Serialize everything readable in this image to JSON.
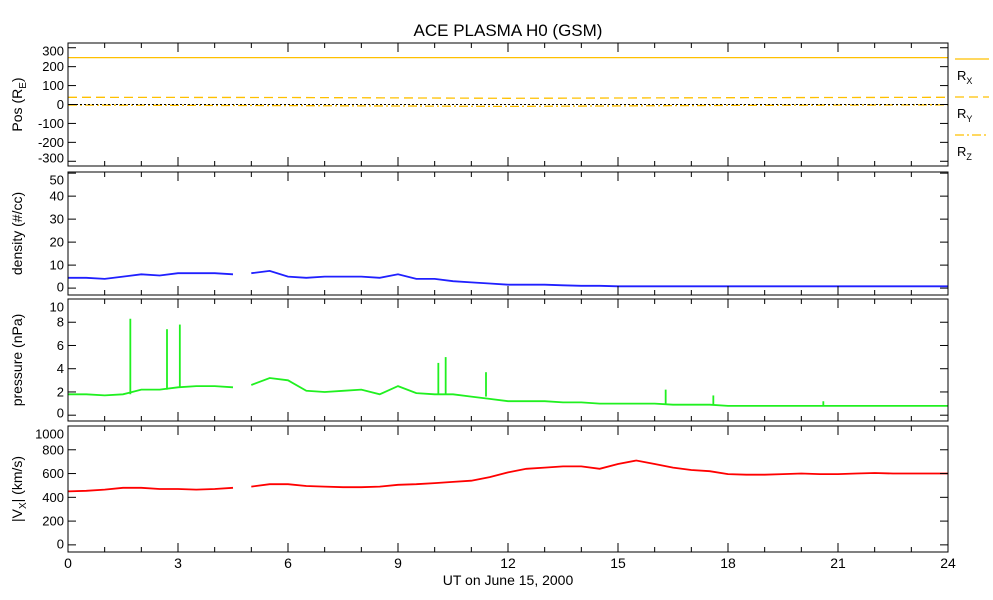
{
  "title": "ACE PLASMA H0 (GSM)",
  "chart_data": {
    "type": "line",
    "title": "ACE PLASMA H0 (GSM)",
    "xlabel": "UT on June 15, 2000",
    "xlim": [
      0,
      24
    ],
    "xticks": [
      0,
      3,
      6,
      9,
      12,
      15,
      18,
      21,
      24
    ],
    "panels": [
      {
        "id": "pos",
        "ylabel": "Pos (R",
        "ylabel_sub": "E",
        "ylabel_end": ")",
        "ylim": [
          -325,
          325
        ],
        "yticks": [
          300,
          200,
          100,
          0,
          -100,
          -200,
          -300
        ],
        "zero_line": true,
        "series": [
          {
            "name": "R",
            "sub": "X",
            "color": "#ffc000",
            "dash": "solid",
            "x": [
              0,
              24
            ],
            "y": [
              248,
              248
            ]
          },
          {
            "name": "R",
            "sub": "Y",
            "color": "#ffc000",
            "dash": "dashed",
            "x": [
              0,
              6,
              12,
              18,
              24
            ],
            "y": [
              38,
              37,
              33,
              36,
              38
            ]
          },
          {
            "name": "R",
            "sub": "Z",
            "color": "#ffc000",
            "dash": "dashdot",
            "x": [
              0,
              6,
              12,
              18,
              24
            ],
            "y": [
              -3,
              -6,
              -10,
              -5,
              -2
            ]
          }
        ]
      },
      {
        "id": "density",
        "ylabel": "density (#/cc)",
        "ylim": [
          -3,
          50.5
        ],
        "yticks": [
          50,
          40,
          30,
          20,
          10,
          0
        ],
        "series": [
          {
            "name": "density",
            "color": "#2020ff",
            "x": [
              0,
              0.5,
              1,
              1.5,
              2,
              2.5,
              3,
              3.5,
              4,
              4.5,
              4.6,
              4.7,
              5,
              5.5,
              6,
              6.5,
              7,
              7.5,
              8,
              8.5,
              9,
              9.5,
              10,
              10.5,
              11,
              11.5,
              12,
              12.5,
              13,
              13.5,
              14,
              14.5,
              15,
              15.5,
              16,
              16.5,
              17,
              17.5,
              18,
              18.5,
              19,
              19.5,
              20,
              20.5,
              21,
              21.5,
              22,
              22.5,
              23,
              23.5,
              24
            ],
            "y": [
              4.5,
              4.5,
              4,
              5,
              6,
              5.5,
              6.5,
              6.5,
              6.5,
              6,
              null,
              null,
              6.5,
              7.5,
              5,
              4.5,
              5,
              5,
              5,
              4.5,
              6,
              4,
              4,
              3,
              2.5,
              2,
              1.5,
              1.5,
              1.5,
              1.2,
              1,
              1,
              0.8,
              0.8,
              0.8,
              0.8,
              0.8,
              0.8,
              0.8,
              0.8,
              0.8,
              0.8,
              0.8,
              0.8,
              0.8,
              0.8,
              0.8,
              0.8,
              0.8,
              0.8,
              0.8
            ]
          }
        ]
      },
      {
        "id": "pressure",
        "ylabel": "pressure (nPa)",
        "ylim": [
          -0.5,
          10
        ],
        "yticks": [
          10,
          8,
          6,
          4,
          2,
          0
        ],
        "series": [
          {
            "name": "pressure",
            "color": "#20f020",
            "x": [
              0,
              0.5,
              1,
              1.5,
              2,
              2.5,
              3,
              3.5,
              4,
              4.5,
              4.6,
              4.7,
              5,
              5.5,
              6,
              6.5,
              7,
              7.5,
              8,
              8.5,
              9,
              9.5,
              10,
              10.5,
              11,
              11.5,
              12,
              12.5,
              13,
              13.5,
              14,
              14.5,
              15,
              15.5,
              16,
              16.5,
              17,
              17.5,
              18,
              18.5,
              19,
              19.5,
              20,
              20.5,
              21,
              21.5,
              22,
              22.5,
              23,
              23.5,
              24
            ],
            "y": [
              1.8,
              1.8,
              1.7,
              1.8,
              2.2,
              2.2,
              2.4,
              2.5,
              2.5,
              2.4,
              null,
              null,
              2.6,
              3.2,
              3,
              2.1,
              2,
              2.1,
              2.2,
              1.8,
              2.5,
              1.9,
              1.8,
              1.8,
              1.6,
              1.4,
              1.2,
              1.2,
              1.2,
              1.1,
              1.1,
              1,
              1,
              1,
              1,
              0.9,
              0.9,
              0.9,
              0.8,
              0.8,
              0.8,
              0.8,
              0.8,
              0.8,
              0.8,
              0.8,
              0.8,
              0.8,
              0.8,
              0.8,
              0.8
            ],
            "spikes": {
              "x": [
                1.7,
                2.7,
                3.05,
                10.1,
                10.3,
                11.4,
                16.3,
                17.6,
                20.6
              ],
              "y": [
                8.3,
                7.4,
                7.8,
                4.5,
                5.0,
                3.7,
                2.2,
                1.7,
                1.2
              ]
            }
          }
        ]
      },
      {
        "id": "vx",
        "ylabel": "|V",
        "ylabel_sub": "X",
        "ylabel_end": "| (km/s)",
        "ylim": [
          -60,
          1000
        ],
        "yticks": [
          1000,
          800,
          600,
          400,
          200,
          0
        ],
        "series": [
          {
            "name": "Vx",
            "color": "#ff0000",
            "x": [
              0,
              0.5,
              1,
              1.5,
              2,
              2.5,
              3,
              3.5,
              4,
              4.5,
              4.6,
              4.8,
              5,
              5.5,
              6,
              6.5,
              7,
              7.5,
              8,
              8.5,
              9,
              9.5,
              10,
              10.5,
              11,
              11.5,
              12,
              12.5,
              13,
              13.5,
              14,
              14.5,
              15,
              15.5,
              16,
              16.5,
              17,
              17.5,
              18,
              18.5,
              19,
              19.5,
              20,
              20.5,
              21,
              21.5,
              22,
              22.5,
              23,
              23.5,
              24
            ],
            "y": [
              450,
              455,
              465,
              480,
              480,
              470,
              470,
              465,
              470,
              480,
              null,
              null,
              490,
              510,
              510,
              495,
              490,
              485,
              485,
              490,
              505,
              510,
              520,
              530,
              540,
              570,
              610,
              640,
              650,
              660,
              660,
              640,
              680,
              710,
              680,
              650,
              630,
              620,
              595,
              590,
              590,
              595,
              600,
              595,
              595,
              600,
              605,
              600,
              600,
              600,
              600
            ]
          }
        ]
      }
    ]
  }
}
